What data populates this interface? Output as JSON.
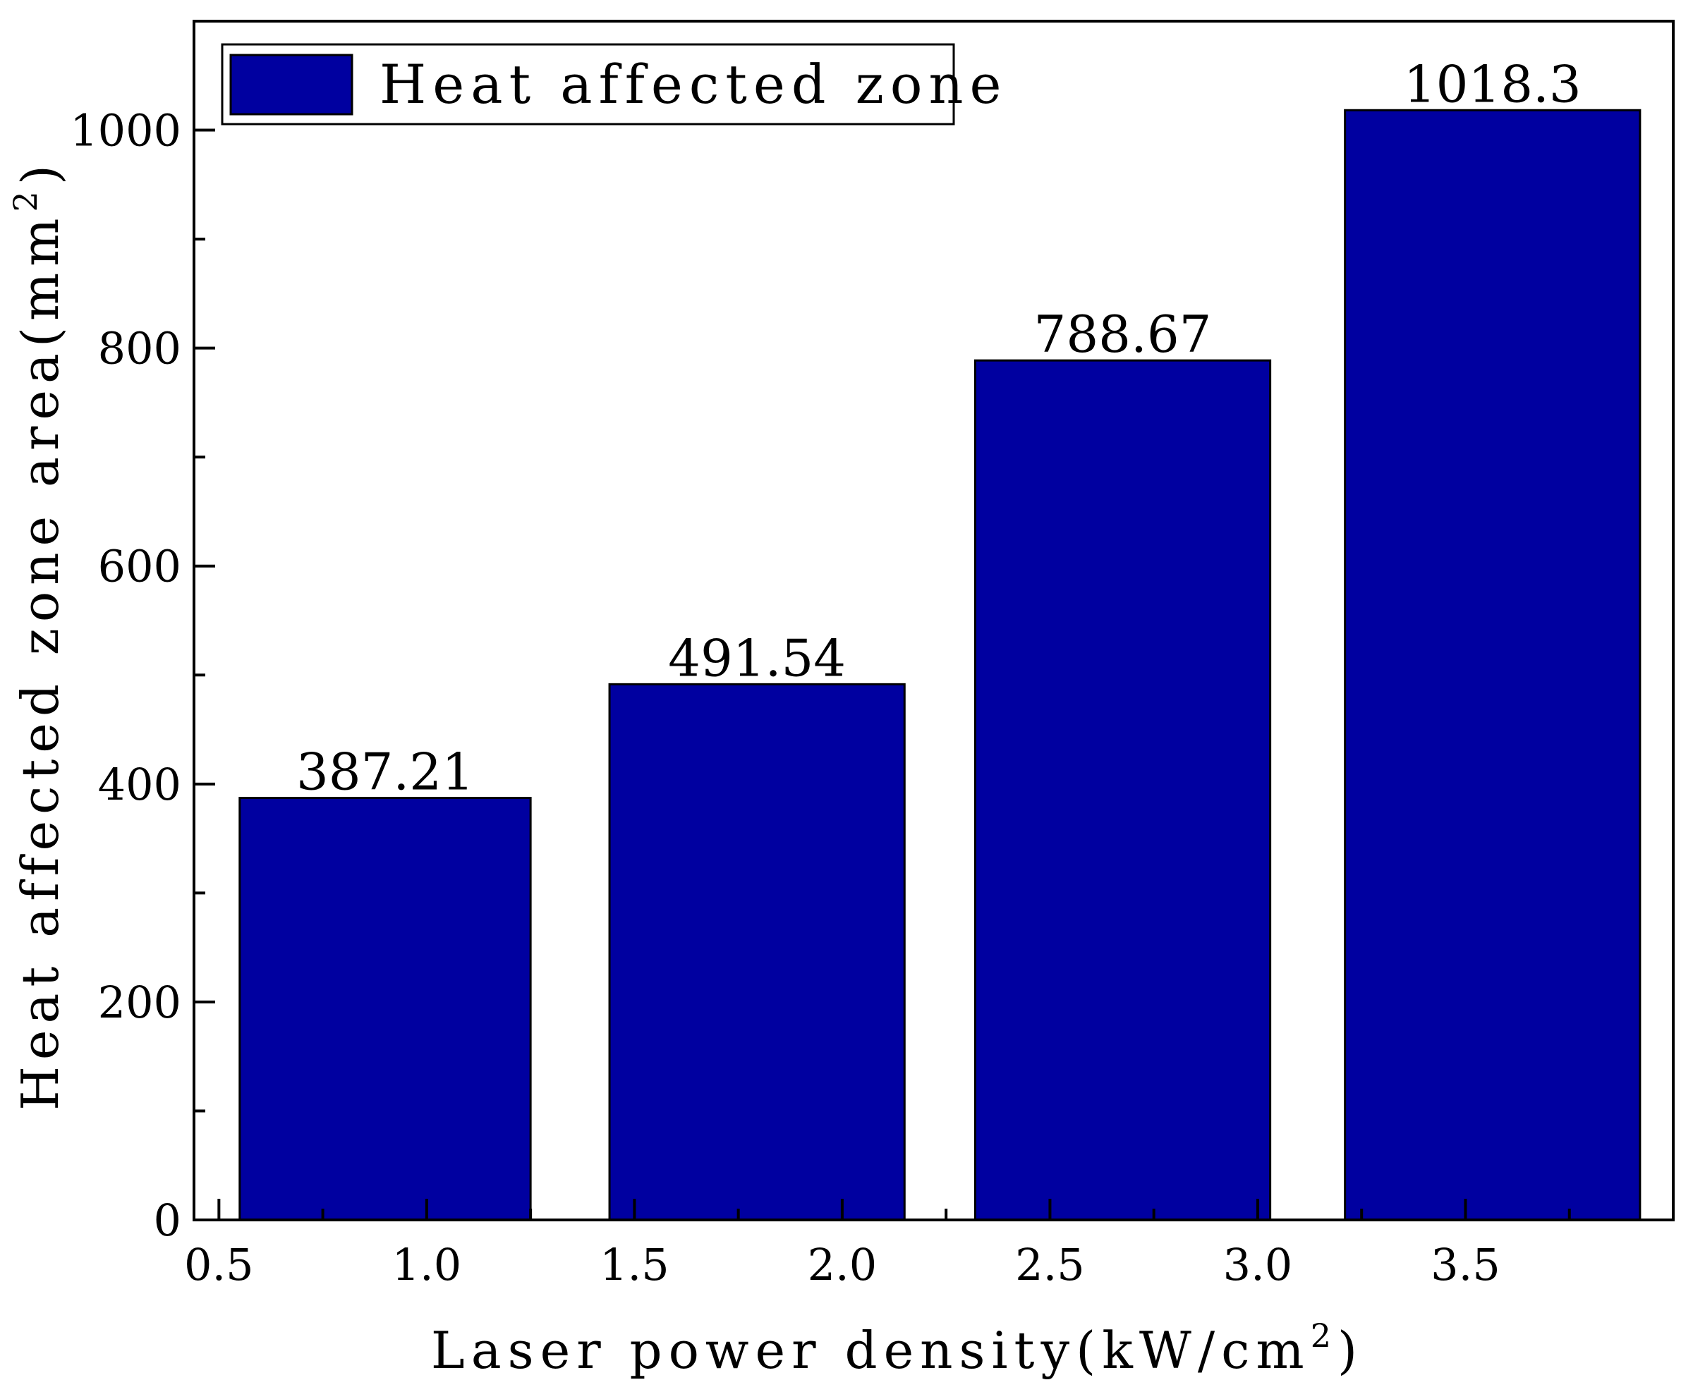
{
  "chart_data": {
    "type": "bar",
    "series": [
      {
        "name": "Heat affected zone",
        "color": "#0000a0",
        "bars": [
          {
            "x_start": 0.55,
            "x_end": 1.25,
            "value": 387.21,
            "label": "387.21"
          },
          {
            "x_start": 1.44,
            "x_end": 2.15,
            "value": 491.54,
            "label": "491.54"
          },
          {
            "x_start": 2.32,
            "x_end": 3.03,
            "value": 788.67,
            "label": "788.67"
          },
          {
            "x_start": 3.21,
            "x_end": 3.92,
            "value": 1018.3,
            "label": "1018.3"
          }
        ]
      }
    ],
    "xlabel_main": "Laser power density(kW/cm",
    "xlabel_sup": "2",
    "xlabel_tail": ")",
    "ylabel_main": "Heat affected zone area(mm",
    "ylabel_sup": "2",
    "ylabel_tail": ")",
    "xlim": [
      0.44,
      4.0
    ],
    "ylim": [
      0,
      1100
    ],
    "x_ticks": [
      {
        "value": 0.5,
        "label": "0.5"
      },
      {
        "value": 1.0,
        "label": "1.0"
      },
      {
        "value": 1.5,
        "label": "1.5"
      },
      {
        "value": 2.0,
        "label": "2.0"
      },
      {
        "value": 2.5,
        "label": "2.5"
      },
      {
        "value": 3.0,
        "label": "3.0"
      },
      {
        "value": 3.5,
        "label": "3.5"
      }
    ],
    "x_minor_ticks": [
      0.75,
      1.25,
      1.75,
      2.25,
      2.75,
      3.25,
      3.75
    ],
    "y_ticks": [
      {
        "value": 0,
        "label": "0"
      },
      {
        "value": 200,
        "label": "200"
      },
      {
        "value": 400,
        "label": "400"
      },
      {
        "value": 600,
        "label": "600"
      },
      {
        "value": 800,
        "label": "800"
      },
      {
        "value": 1000,
        "label": "1000"
      }
    ],
    "y_minor_ticks": [
      100,
      300,
      500,
      700,
      900
    ],
    "legend": {
      "label": "Heat affected zone",
      "position": "top-left"
    },
    "grid": false
  }
}
